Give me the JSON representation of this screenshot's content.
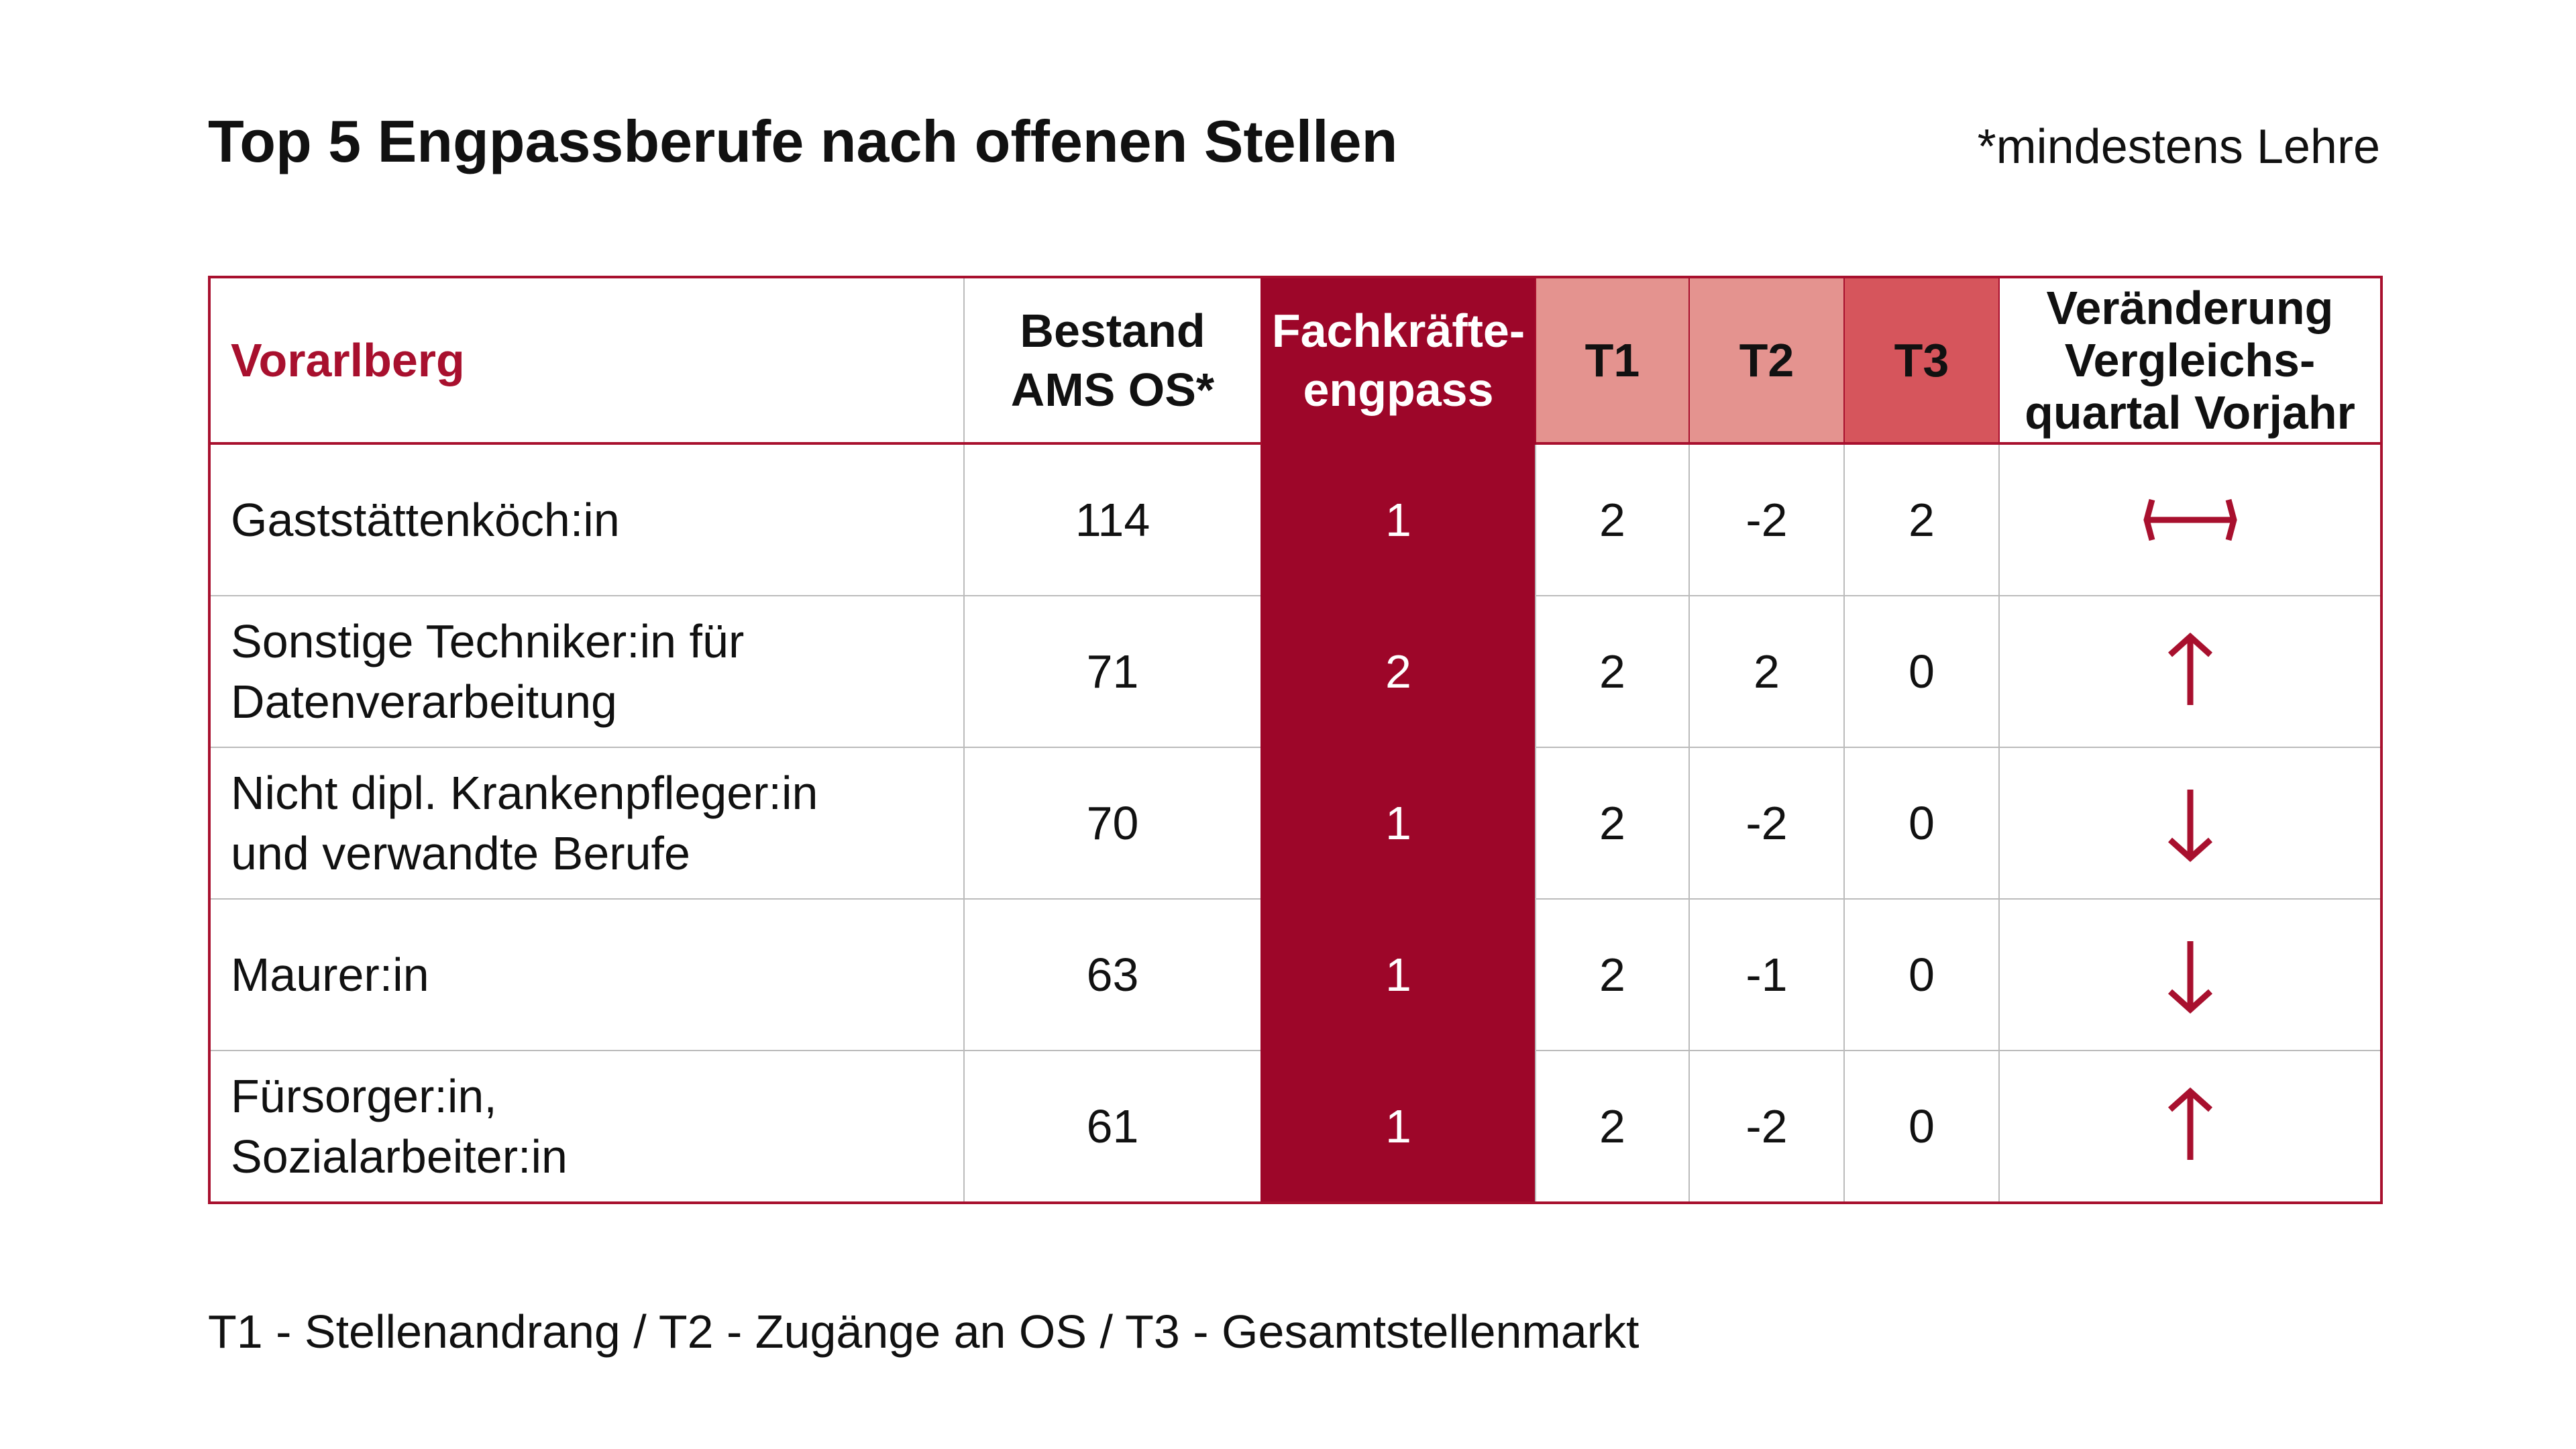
{
  "title": "Top 5 Engpassberufe nach offenen Stellen",
  "note": "*mindestens Lehre",
  "footer": "T1 - Stellenandrang / T2 - Zugänge an OS / T3 - Gesamtstellenmarkt",
  "colors": {
    "accent": "#9D0629",
    "t1_t2": "#E4938F",
    "t3": "#D6555C",
    "arrow": "#A8102E"
  },
  "table": {
    "headers": {
      "region": "Vorarlberg",
      "bestand_line1": "Bestand",
      "bestand_line2": "AMS OS*",
      "fk_line1": "Fachkräfte-",
      "fk_line2": "engpass",
      "t1": "T1",
      "t2": "T2",
      "t3": "T3",
      "change_line1": "Veränderung",
      "change_line2": "Vergleichs-",
      "change_line3": "quartal Vorjahr"
    },
    "rows": [
      {
        "line1": "Gaststättenköch:in",
        "line2": "",
        "bestand": "114",
        "fk": "1",
        "t1": "2",
        "t2": "-2",
        "t3": "2",
        "change": "left-right-arrow-icon"
      },
      {
        "line1": "Sonstige Techniker:in für",
        "line2": "Datenverarbeitung",
        "bestand": "71",
        "fk": "2",
        "t1": "2",
        "t2": "2",
        "t3": "0",
        "change": "up-arrow-icon"
      },
      {
        "line1": "Nicht dipl. Krankenpfleger:in",
        "line2": "und verwandte Berufe",
        "bestand": "70",
        "fk": "1",
        "t1": "2",
        "t2": "-2",
        "t3": "0",
        "change": "down-arrow-icon"
      },
      {
        "line1": "Maurer:in",
        "line2": "",
        "bestand": "63",
        "fk": "1",
        "t1": "2",
        "t2": "-1",
        "t3": "0",
        "change": "down-arrow-icon"
      },
      {
        "line1": "Fürsorger:in,",
        "line2": "Sozialarbeiter:in",
        "bestand": "61",
        "fk": "1",
        "t1": "2",
        "t2": "-2",
        "t3": "0",
        "change": "up-arrow-icon"
      }
    ]
  }
}
